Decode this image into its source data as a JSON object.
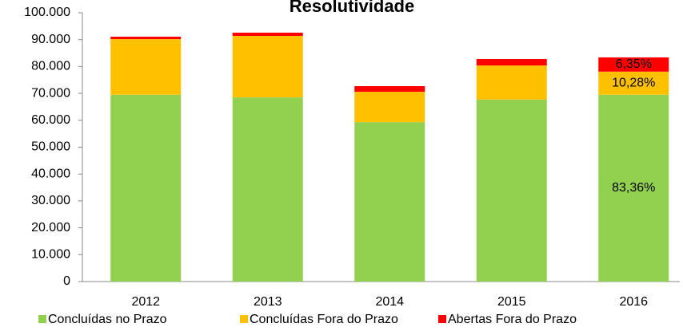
{
  "chart_data": {
    "type": "stacked_bar",
    "title": "Resolutividade",
    "categories": [
      "2012",
      "2013",
      "2014",
      "2015",
      "2016"
    ],
    "series": [
      {
        "name": "Concluídas no Prazo",
        "color": "#92d050",
        "values": [
          69500,
          68500,
          59300,
          67700,
          69500
        ]
      },
      {
        "name": "Concluídas Fora do Prazo",
        "color": "#ffc000",
        "values": [
          20700,
          22900,
          11300,
          12700,
          8600
        ]
      },
      {
        "name": "Abertas Fora do Prazo",
        "color": "#ff0000",
        "values": [
          900,
          1200,
          2100,
          2400,
          5300
        ]
      }
    ],
    "annotations": [
      {
        "text": "83,36%",
        "series": 0,
        "category": 4
      },
      {
        "text": "10,28%",
        "series": 1,
        "category": 4
      },
      {
        "text": "6,35%",
        "series": 2,
        "category": 4
      }
    ],
    "ylim": [
      0,
      100000
    ],
    "yticks": [
      0,
      {
        "value": 10000,
        "label": "10.000"
      },
      {
        "value": 20000,
        "label": "20.000"
      },
      {
        "value": 30000,
        "label": "30.000"
      },
      {
        "value": 40000,
        "label": "40.000"
      },
      {
        "value": 50000,
        "label": "50.000"
      },
      {
        "value": 60000,
        "label": "60.000"
      },
      {
        "value": 70000,
        "label": "70.000"
      },
      {
        "value": 80000,
        "label": "80.000"
      },
      {
        "value": 90000,
        "label": "90.000"
      },
      {
        "value": 100000,
        "label": "100.000"
      }
    ],
    "grid": false,
    "legend": "bottom"
  }
}
